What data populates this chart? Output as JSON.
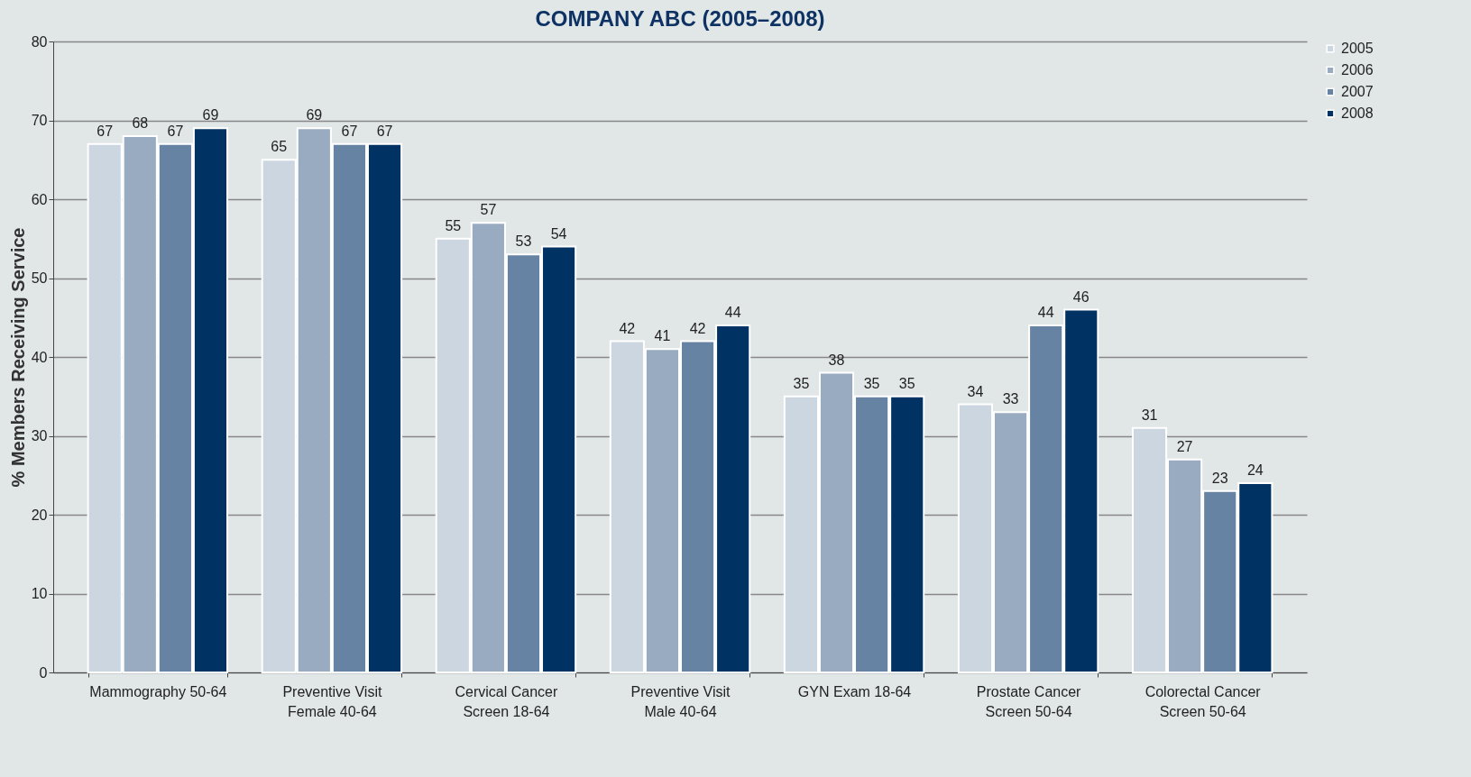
{
  "chart_data": {
    "type": "bar",
    "title": "COMPANY ABC (2005–2008)",
    "ylabel": "% Members Receiving Service",
    "categories": [
      "Mammography 50-64",
      "Preventive Visit Female 40-64",
      "Cervical Cancer Screen 18-64",
      "Preventive Visit Male 40-64",
      "GYN Exam 18-64",
      "Prostate Cancer Screen 50-64",
      "Colorectal Cancer Screen 50-64"
    ],
    "series": [
      {
        "name": "2005",
        "color": "#ccd6e0",
        "values": [
          67,
          65,
          55,
          42,
          35,
          34,
          31
        ]
      },
      {
        "name": "2006",
        "color": "#98abc1",
        "values": [
          68,
          69,
          57,
          41,
          38,
          33,
          27
        ]
      },
      {
        "name": "2007",
        "color": "#6683a3",
        "values": [
          67,
          67,
          53,
          42,
          35,
          44,
          23
        ]
      },
      {
        "name": "2008",
        "color": "#003263",
        "values": [
          69,
          67,
          54,
          44,
          35,
          46,
          24
        ]
      }
    ],
    "ylim": [
      0,
      80
    ],
    "yticks": [
      0,
      10,
      20,
      30,
      40,
      50,
      60,
      70,
      80
    ],
    "grid": "y",
    "legend": "right",
    "data_labels": true
  }
}
